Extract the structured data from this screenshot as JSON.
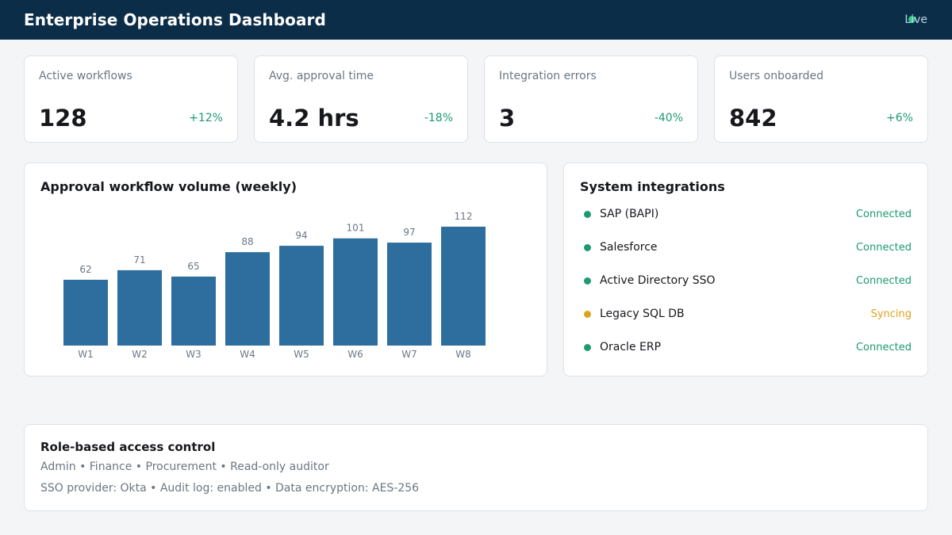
{
  "header": {
    "title": "Enterprise Operations Dashboard",
    "live_label": "Live",
    "live_color": "#35c98a"
  },
  "kpis": [
    {
      "label": "Active workflows",
      "value": "128",
      "delta": "+12%"
    },
    {
      "label": "Avg. approval time",
      "value": "4.2 hrs",
      "delta": "-18%"
    },
    {
      "label": "Integration errors",
      "value": "3",
      "delta": "-40%"
    },
    {
      "label": "Users onboarded",
      "value": "842",
      "delta": "+6%"
    }
  ],
  "chart_panel": {
    "title": "Approval workflow volume (weekly)"
  },
  "chart_data": {
    "type": "bar",
    "categories": [
      "W1",
      "W2",
      "W3",
      "W4",
      "W5",
      "W6",
      "W7",
      "W8"
    ],
    "values": [
      62,
      71,
      65,
      88,
      94,
      101,
      97,
      112
    ],
    "title": "Approval workflow volume (weekly)",
    "xlabel": "",
    "ylabel": "",
    "ylim": [
      0,
      112
    ],
    "bar_color": "#2e6e9e",
    "grid": false,
    "data_labels": true
  },
  "integrations": {
    "title": "System integrations",
    "items": [
      {
        "name": "SAP (BAPI)",
        "status": "Connected",
        "color": "#1d9a72"
      },
      {
        "name": "Salesforce",
        "status": "Connected",
        "color": "#1d9a72"
      },
      {
        "name": "Active Directory SSO",
        "status": "Connected",
        "color": "#1d9a72"
      },
      {
        "name": "Legacy SQL DB",
        "status": "Syncing",
        "color": "#e0a21b"
      },
      {
        "name": "Oracle ERP",
        "status": "Connected",
        "color": "#1d9a72"
      }
    ]
  },
  "rbac": {
    "title": "Role-based access control",
    "roles_line": "Admin  •  Finance  •  Procurement  •  Read-only auditor",
    "settings_line": "SSO provider: Okta  •  Audit log: enabled  •  Data encryption: AES-256"
  }
}
